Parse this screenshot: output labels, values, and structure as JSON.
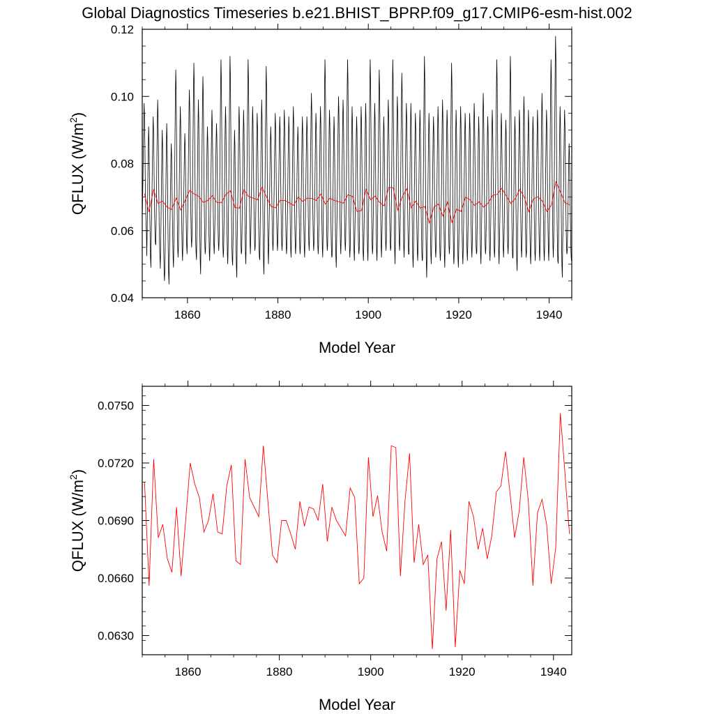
{
  "figure": {
    "title": "Global Diagnostics Timeseries b.e21.BHIST_BPRP.f09_g17.CMIP6-esm-hist.002"
  },
  "colors": {
    "monthly_line": "#000000",
    "annual_line": "#ff0000",
    "axes": "#000000",
    "background": "#ffffff"
  },
  "chart_data": [
    {
      "type": "line",
      "title": "",
      "xlabel": "Model Year",
      "ylabel": "QFLUX (W/m2)",
      "ylabel_base": "QFLUX (W/m",
      "ylabel_sup": "2",
      "ylabel_tail": ")",
      "xlim": [
        1850,
        1945
      ],
      "ylim": [
        0.04,
        0.12
      ],
      "x_ticks": [
        1860,
        1880,
        1900,
        1920,
        1940
      ],
      "x_tick_labels": [
        "1860",
        "1880",
        "1900",
        "1920",
        "1940"
      ],
      "y_ticks": [
        0.04,
        0.06,
        0.08,
        0.1,
        0.12
      ],
      "y_tick_labels": [
        "0.04",
        "0.06",
        "0.08",
        "0.10",
        "0.12"
      ],
      "grid": false,
      "series": [
        {
          "kind": "monthly",
          "color": "#000000",
          "x_start": 1850.0,
          "x_step": 0.0833333,
          "note_cycle_values": [
            0.056,
            0.064,
            0.073,
            0.084,
            0.094,
            0.101,
            0.096,
            0.085,
            0.072,
            0.062,
            0.055,
            0.052
          ],
          "years": [
            1850,
            1851,
            1852,
            1853,
            1854,
            1855,
            1856,
            1857,
            1858,
            1859,
            1860,
            1861,
            1862,
            1863,
            1864,
            1865,
            1866,
            1867,
            1868,
            1869,
            1870,
            1871,
            1872,
            1873,
            1874,
            1875,
            1876,
            1877,
            1878,
            1879,
            1880,
            1881,
            1882,
            1883,
            1884,
            1885,
            1886,
            1887,
            1888,
            1889,
            1890,
            1891,
            1892,
            1893,
            1894,
            1895,
            1896,
            1897,
            1898,
            1899,
            1900,
            1901,
            1902,
            1903,
            1904,
            1905,
            1906,
            1907,
            1908,
            1909,
            1910,
            1911,
            1912,
            1913,
            1914,
            1915,
            1916,
            1917,
            1918,
            1919,
            1920,
            1921,
            1922,
            1923,
            1924,
            1925,
            1926,
            1927,
            1928,
            1929,
            1930,
            1931,
            1932,
            1933,
            1934,
            1935,
            1936,
            1937,
            1938,
            1939,
            1940,
            1941,
            1942,
            1943,
            1944
          ],
          "annual_peak": [
            0.098,
            0.091,
            0.094,
            0.099,
            0.09,
            0.092,
            0.086,
            0.108,
            0.097,
            0.089,
            0.102,
            0.11,
            0.099,
            0.106,
            0.091,
            0.096,
            0.092,
            0.111,
            0.097,
            0.112,
            0.09,
            0.097,
            0.096,
            0.111,
            0.097,
            0.095,
            0.099,
            0.109,
            0.091,
            0.095,
            0.094,
            0.096,
            0.094,
            0.097,
            0.091,
            0.094,
            0.094,
            0.101,
            0.095,
            0.097,
            0.111,
            0.096,
            0.094,
            0.1,
            0.099,
            0.111,
            0.097,
            0.094,
            0.097,
            0.098,
            0.111,
            0.098,
            0.108,
            0.094,
            0.099,
            0.111,
            0.1,
            0.107,
            0.098,
            0.098,
            0.095,
            0.096,
            0.112,
            0.095,
            0.094,
            0.097,
            0.099,
            0.096,
            0.11,
            0.096,
            0.097,
            0.095,
            0.095,
            0.098,
            0.094,
            0.101,
            0.094,
            0.096,
            0.111,
            0.095,
            0.093,
            0.112,
            0.094,
            0.096,
            0.1,
            0.096,
            0.094,
            0.096,
            0.101,
            0.096,
            0.111,
            0.118,
            0.097,
            0.096,
            0.086
          ],
          "annual_trough": [
            0.06,
            0.049,
            0.056,
            0.052,
            0.045,
            0.044,
            0.049,
            0.052,
            0.051,
            0.053,
            0.055,
            0.053,
            0.047,
            0.053,
            0.051,
            0.053,
            0.054,
            0.052,
            0.05,
            0.051,
            0.046,
            0.053,
            0.05,
            0.053,
            0.054,
            0.052,
            0.047,
            0.05,
            0.054,
            0.054,
            0.054,
            0.053,
            0.052,
            0.053,
            0.053,
            0.052,
            0.054,
            0.054,
            0.053,
            0.052,
            0.054,
            0.052,
            0.049,
            0.053,
            0.054,
            0.052,
            0.051,
            0.053,
            0.051,
            0.051,
            0.053,
            0.051,
            0.052,
            0.054,
            0.054,
            0.05,
            0.054,
            0.052,
            0.053,
            0.049,
            0.051,
            0.051,
            0.046,
            0.05,
            0.052,
            0.051,
            0.049,
            0.053,
            0.05,
            0.049,
            0.05,
            0.051,
            0.052,
            0.053,
            0.05,
            0.053,
            0.051,
            0.052,
            0.05,
            0.052,
            0.053,
            0.052,
            0.048,
            0.052,
            0.052,
            0.05,
            0.051,
            0.051,
            0.051,
            0.051,
            0.052,
            0.051,
            0.046,
            0.053,
            0.051
          ]
        },
        {
          "kind": "annual",
          "color": "#ff0000",
          "x": [
            1850.5,
            1851.5,
            1852.5,
            1853.5,
            1854.5,
            1855.5,
            1856.5,
            1857.5,
            1858.5,
            1859.5,
            1860.5,
            1861.5,
            1862.5,
            1863.5,
            1864.5,
            1865.5,
            1866.5,
            1867.5,
            1868.5,
            1869.5,
            1870.5,
            1871.5,
            1872.5,
            1873.5,
            1874.5,
            1875.5,
            1876.5,
            1877.5,
            1878.5,
            1879.5,
            1880.5,
            1881.5,
            1882.5,
            1883.5,
            1884.5,
            1885.5,
            1886.5,
            1887.5,
            1888.5,
            1889.5,
            1890.5,
            1891.5,
            1892.5,
            1893.5,
            1894.5,
            1895.5,
            1896.5,
            1897.5,
            1898.5,
            1899.5,
            1900.5,
            1901.5,
            1902.5,
            1903.5,
            1904.5,
            1905.5,
            1906.5,
            1907.5,
            1908.5,
            1909.5,
            1910.5,
            1911.5,
            1912.5,
            1913.5,
            1914.5,
            1915.5,
            1916.5,
            1917.5,
            1918.5,
            1919.5,
            1920.5,
            1921.5,
            1922.5,
            1923.5,
            1924.5,
            1925.5,
            1926.5,
            1927.5,
            1928.5,
            1929.5,
            1930.5,
            1931.5,
            1932.5,
            1933.5,
            1934.5,
            1935.5,
            1936.5,
            1937.5,
            1938.5,
            1939.5,
            1940.5,
            1941.5,
            1942.5,
            1943.5,
            1944.5
          ],
          "y": [
            0.071,
            0.0656,
            0.0722,
            0.0681,
            0.0688,
            0.067,
            0.0663,
            0.0697,
            0.0661,
            0.069,
            0.072,
            0.0709,
            0.0702,
            0.0684,
            0.069,
            0.0704,
            0.0684,
            0.0683,
            0.0708,
            0.0719,
            0.0669,
            0.0667,
            0.0722,
            0.0702,
            0.0697,
            0.0692,
            0.0729,
            0.07,
            0.0672,
            0.0668,
            0.069,
            0.069,
            0.0683,
            0.0675,
            0.07,
            0.0687,
            0.0697,
            0.0696,
            0.069,
            0.0709,
            0.0679,
            0.0697,
            0.069,
            0.0686,
            0.0682,
            0.0707,
            0.0702,
            0.0657,
            0.066,
            0.0723,
            0.0692,
            0.0703,
            0.0684,
            0.0674,
            0.0729,
            0.0728,
            0.0661,
            0.07,
            0.0725,
            0.0668,
            0.0688,
            0.0667,
            0.0672,
            0.0623,
            0.067,
            0.0679,
            0.0643,
            0.0685,
            0.0624,
            0.0664,
            0.0657,
            0.07,
            0.0692,
            0.0675,
            0.0686,
            0.067,
            0.0682,
            0.0705,
            0.0708,
            0.0726,
            0.0704,
            0.0681,
            0.0695,
            0.0723,
            0.07,
            0.0656,
            0.0694,
            0.0701,
            0.0688,
            0.0657,
            0.0676,
            0.0746,
            0.0715,
            0.0683,
            0.0677
          ]
        }
      ]
    },
    {
      "type": "line",
      "title": "",
      "xlabel": "Model Year",
      "ylabel": "QFLUX (W/m2)",
      "ylabel_base": "QFLUX (W/m",
      "ylabel_sup": "2",
      "ylabel_tail": ")",
      "xlim": [
        1850,
        1944
      ],
      "ylim": [
        0.062,
        0.076
      ],
      "x_ticks": [
        1860,
        1880,
        1900,
        1920,
        1940
      ],
      "x_tick_labels": [
        "1860",
        "1880",
        "1900",
        "1920",
        "1940"
      ],
      "y_ticks": [
        0.063,
        0.066,
        0.069,
        0.072,
        0.075
      ],
      "y_tick_labels": [
        "0.0630",
        "0.0660",
        "0.0690",
        "0.0720",
        "0.0750"
      ],
      "grid": false,
      "series": [
        {
          "kind": "annual",
          "color": "#ff0000",
          "x": [
            1850.5,
            1851.5,
            1852.5,
            1853.5,
            1854.5,
            1855.5,
            1856.5,
            1857.5,
            1858.5,
            1859.5,
            1860.5,
            1861.5,
            1862.5,
            1863.5,
            1864.5,
            1865.5,
            1866.5,
            1867.5,
            1868.5,
            1869.5,
            1870.5,
            1871.5,
            1872.5,
            1873.5,
            1874.5,
            1875.5,
            1876.5,
            1877.5,
            1878.5,
            1879.5,
            1880.5,
            1881.5,
            1882.5,
            1883.5,
            1884.5,
            1885.5,
            1886.5,
            1887.5,
            1888.5,
            1889.5,
            1890.5,
            1891.5,
            1892.5,
            1893.5,
            1894.5,
            1895.5,
            1896.5,
            1897.5,
            1898.5,
            1899.5,
            1900.5,
            1901.5,
            1902.5,
            1903.5,
            1904.5,
            1905.5,
            1906.5,
            1907.5,
            1908.5,
            1909.5,
            1910.5,
            1911.5,
            1912.5,
            1913.5,
            1914.5,
            1915.5,
            1916.5,
            1917.5,
            1918.5,
            1919.5,
            1920.5,
            1921.5,
            1922.5,
            1923.5,
            1924.5,
            1925.5,
            1926.5,
            1927.5,
            1928.5,
            1929.5,
            1930.5,
            1931.5,
            1932.5,
            1933.5,
            1934.5,
            1935.5,
            1936.5,
            1937.5,
            1938.5,
            1939.5,
            1940.5,
            1941.5,
            1942.5,
            1943.5
          ],
          "y": [
            0.071,
            0.0656,
            0.0722,
            0.0681,
            0.0688,
            0.067,
            0.0663,
            0.0697,
            0.0661,
            0.069,
            0.072,
            0.0709,
            0.0702,
            0.0684,
            0.069,
            0.0704,
            0.0684,
            0.0683,
            0.0708,
            0.0719,
            0.0669,
            0.0667,
            0.0722,
            0.0702,
            0.0697,
            0.0692,
            0.0729,
            0.07,
            0.0672,
            0.0668,
            0.069,
            0.069,
            0.0683,
            0.0675,
            0.07,
            0.0687,
            0.0697,
            0.0696,
            0.069,
            0.0709,
            0.0679,
            0.0697,
            0.069,
            0.0686,
            0.0682,
            0.0707,
            0.0702,
            0.0657,
            0.066,
            0.0723,
            0.0692,
            0.0703,
            0.0684,
            0.0674,
            0.0729,
            0.0728,
            0.0661,
            0.07,
            0.0725,
            0.0668,
            0.0688,
            0.0667,
            0.0672,
            0.0623,
            0.067,
            0.0679,
            0.0643,
            0.0685,
            0.0624,
            0.0664,
            0.0657,
            0.07,
            0.0692,
            0.0675,
            0.0686,
            0.067,
            0.0682,
            0.0705,
            0.0708,
            0.0726,
            0.0704,
            0.0681,
            0.0695,
            0.0723,
            0.07,
            0.0656,
            0.0694,
            0.0701,
            0.0688,
            0.0657,
            0.0676,
            0.0746,
            0.0715,
            0.0683
          ]
        }
      ]
    }
  ]
}
